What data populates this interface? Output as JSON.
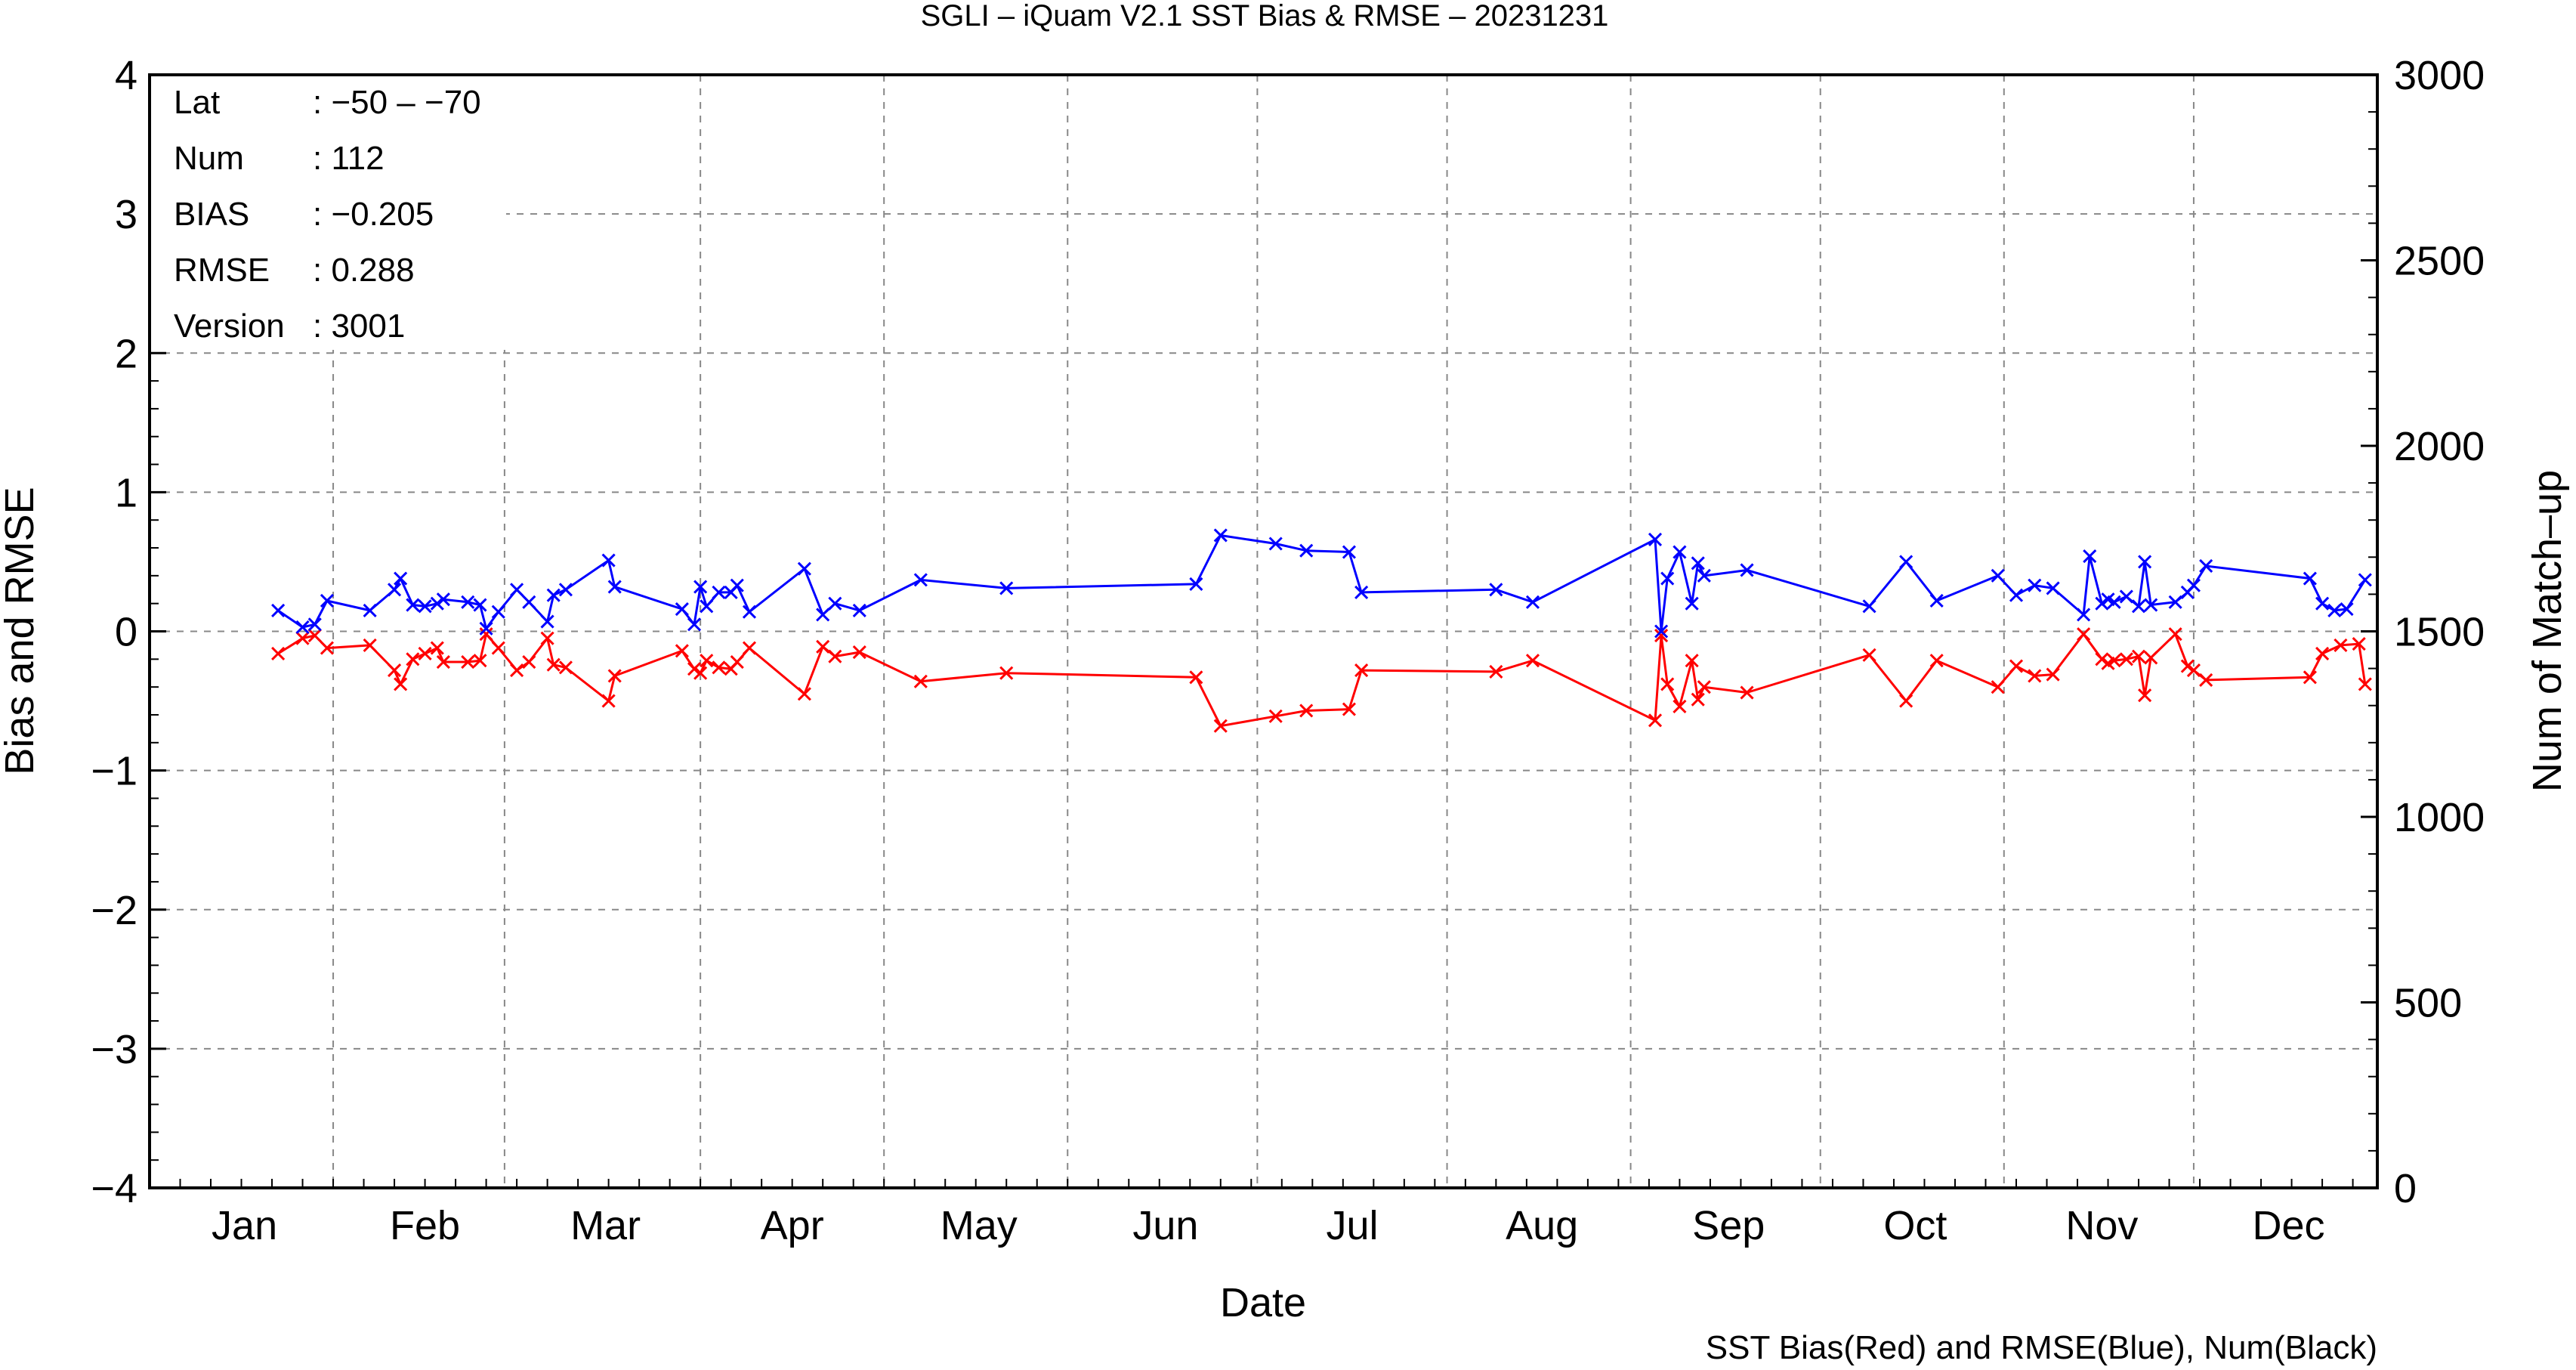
{
  "chart_data": {
    "type": "line",
    "title": "SGLI – iQuam V2.1 SST Bias & RMSE  – 20231231",
    "xlabel": "Date",
    "ylabel": "Bias and RMSE",
    "y2label": "Num of Match–up",
    "footer": "SST Bias(Red) and RMSE(Blue), Num(Black)",
    "xlim": [
      "2023-01-01",
      "2023-12-31"
    ],
    "ylim": [
      -4,
      4
    ],
    "y2lim": [
      0,
      3000
    ],
    "grid": true,
    "month_labels": [
      "Jan",
      "Feb",
      "Mar",
      "Apr",
      "May",
      "Jun",
      "Jul",
      "Aug",
      "Sep",
      "Oct",
      "Nov",
      "Dec"
    ],
    "y_ticks": [
      "−4",
      "−3",
      "−2",
      "−1",
      "0",
      "1",
      "2",
      "3",
      "4"
    ],
    "y2_ticks": [
      "0",
      "500",
      "1000",
      "1500",
      "2000",
      "2500",
      "3000"
    ],
    "grid_dates": [
      "2023-01-31",
      "2023-02-28",
      "2023-04-01",
      "2023-05-01",
      "2023-05-31",
      "2023-07-01",
      "2023-08-01",
      "2023-08-31",
      "2023-10-01",
      "2023-10-31",
      "2023-12-01"
    ],
    "stats": [
      {
        "label": "Lat",
        "value": ": −50 – −70"
      },
      {
        "label": "Num",
        "value": ": 112"
      },
      {
        "label": "BIAS",
        "value": ": −0.205"
      },
      {
        "label": "RMSE",
        "value": ": 0.288"
      },
      {
        "label": "Version",
        "value": ": 3001"
      }
    ],
    "colors": {
      "bias": "#ff0000",
      "rmse": "#0000ff",
      "num": "#000000",
      "grid": "#888888"
    },
    "series": [
      {
        "name": "Bias",
        "color": "#ff0000",
        "points": [
          [
            "2023-01-22",
            -0.16
          ],
          [
            "2023-01-26",
            -0.05
          ],
          [
            "2023-01-28",
            -0.03
          ],
          [
            "2023-01-30",
            -0.12
          ],
          [
            "2023-02-06",
            -0.1
          ],
          [
            "2023-02-10",
            -0.28
          ],
          [
            "2023-02-11",
            -0.38
          ],
          [
            "2023-02-13",
            -0.2
          ],
          [
            "2023-02-15",
            -0.16
          ],
          [
            "2023-02-17",
            -0.12
          ],
          [
            "2023-02-18",
            -0.22
          ],
          [
            "2023-02-22",
            -0.22
          ],
          [
            "2023-02-24",
            -0.21
          ],
          [
            "2023-02-25",
            -0.02
          ],
          [
            "2023-02-27",
            -0.12
          ],
          [
            "2023-03-02",
            -0.28
          ],
          [
            "2023-03-04",
            -0.22
          ],
          [
            "2023-03-07",
            -0.05
          ],
          [
            "2023-03-08",
            -0.24
          ],
          [
            "2023-03-10",
            -0.26
          ],
          [
            "2023-03-17",
            -0.5
          ],
          [
            "2023-03-18",
            -0.32
          ],
          [
            "2023-03-29",
            -0.14
          ],
          [
            "2023-03-31",
            -0.27
          ],
          [
            "2023-04-01",
            -0.3
          ],
          [
            "2023-04-02",
            -0.21
          ],
          [
            "2023-04-04",
            -0.26
          ],
          [
            "2023-04-06",
            -0.27
          ],
          [
            "2023-04-07",
            -0.22
          ],
          [
            "2023-04-09",
            -0.12
          ],
          [
            "2023-04-18",
            -0.45
          ],
          [
            "2023-04-21",
            -0.11
          ],
          [
            "2023-04-23",
            -0.18
          ],
          [
            "2023-04-27",
            -0.15
          ],
          [
            "2023-05-07",
            -0.36
          ],
          [
            "2023-05-21",
            -0.3
          ],
          [
            "2023-06-21",
            -0.33
          ],
          [
            "2023-06-25",
            -0.68
          ],
          [
            "2023-07-04",
            -0.61
          ],
          [
            "2023-07-09",
            -0.57
          ],
          [
            "2023-07-16",
            -0.56
          ],
          [
            "2023-07-18",
            -0.28
          ],
          [
            "2023-08-09",
            -0.29
          ],
          [
            "2023-08-15",
            -0.21
          ],
          [
            "2023-09-04",
            -0.64
          ],
          [
            "2023-09-05",
            -0.03
          ],
          [
            "2023-09-06",
            -0.38
          ],
          [
            "2023-09-08",
            -0.54
          ],
          [
            "2023-09-10",
            -0.21
          ],
          [
            "2023-09-11",
            -0.49
          ],
          [
            "2023-09-12",
            -0.4
          ],
          [
            "2023-09-19",
            -0.44
          ],
          [
            "2023-10-09",
            -0.17
          ],
          [
            "2023-10-15",
            -0.5
          ],
          [
            "2023-10-20",
            -0.21
          ],
          [
            "2023-10-30",
            -0.4
          ],
          [
            "2023-11-02",
            -0.25
          ],
          [
            "2023-11-05",
            -0.32
          ],
          [
            "2023-11-08",
            -0.31
          ],
          [
            "2023-11-13",
            -0.02
          ],
          [
            "2023-11-16",
            -0.2
          ],
          [
            "2023-11-17",
            -0.23
          ],
          [
            "2023-11-18",
            -0.21
          ],
          [
            "2023-11-20",
            -0.2
          ],
          [
            "2023-11-22",
            -0.18
          ],
          [
            "2023-11-23",
            -0.46
          ],
          [
            "2023-11-24",
            -0.19
          ],
          [
            "2023-11-28",
            -0.02
          ],
          [
            "2023-11-30",
            -0.25
          ],
          [
            "2023-12-01",
            -0.28
          ],
          [
            "2023-12-03",
            -0.35
          ],
          [
            "2023-12-20",
            -0.33
          ],
          [
            "2023-12-22",
            -0.16
          ],
          [
            "2023-12-25",
            -0.1
          ],
          [
            "2023-12-28",
            -0.09
          ],
          [
            "2023-12-29",
            -0.38
          ]
        ]
      },
      {
        "name": "RMSE",
        "color": "#0000ff",
        "points": [
          [
            "2023-01-22",
            0.15
          ],
          [
            "2023-01-26",
            0.03
          ],
          [
            "2023-01-28",
            0.05
          ],
          [
            "2023-01-30",
            0.22
          ],
          [
            "2023-02-06",
            0.15
          ],
          [
            "2023-02-10",
            0.3
          ],
          [
            "2023-02-11",
            0.38
          ],
          [
            "2023-02-13",
            0.19
          ],
          [
            "2023-02-15",
            0.18
          ],
          [
            "2023-02-17",
            0.2
          ],
          [
            "2023-02-18",
            0.23
          ],
          [
            "2023-02-22",
            0.21
          ],
          [
            "2023-02-24",
            0.19
          ],
          [
            "2023-02-25",
            0.02
          ],
          [
            "2023-02-27",
            0.14
          ],
          [
            "2023-03-02",
            0.3
          ],
          [
            "2023-03-04",
            0.21
          ],
          [
            "2023-03-07",
            0.07
          ],
          [
            "2023-03-08",
            0.26
          ],
          [
            "2023-03-10",
            0.3
          ],
          [
            "2023-03-17",
            0.51
          ],
          [
            "2023-03-18",
            0.32
          ],
          [
            "2023-03-29",
            0.16
          ],
          [
            "2023-03-31",
            0.05
          ],
          [
            "2023-04-01",
            0.32
          ],
          [
            "2023-04-02",
            0.18
          ],
          [
            "2023-04-04",
            0.28
          ],
          [
            "2023-04-06",
            0.28
          ],
          [
            "2023-04-07",
            0.33
          ],
          [
            "2023-04-09",
            0.14
          ],
          [
            "2023-04-18",
            0.45
          ],
          [
            "2023-04-21",
            0.12
          ],
          [
            "2023-04-23",
            0.2
          ],
          [
            "2023-04-27",
            0.15
          ],
          [
            "2023-05-07",
            0.37
          ],
          [
            "2023-05-21",
            0.31
          ],
          [
            "2023-06-21",
            0.34
          ],
          [
            "2023-06-25",
            0.69
          ],
          [
            "2023-07-04",
            0.63
          ],
          [
            "2023-07-09",
            0.58
          ],
          [
            "2023-07-16",
            0.57
          ],
          [
            "2023-07-18",
            0.28
          ],
          [
            "2023-08-09",
            0.3
          ],
          [
            "2023-08-15",
            0.21
          ],
          [
            "2023-09-04",
            0.66
          ],
          [
            "2023-09-05",
            0.0
          ],
          [
            "2023-09-06",
            0.38
          ],
          [
            "2023-09-08",
            0.57
          ],
          [
            "2023-09-10",
            0.2
          ],
          [
            "2023-09-11",
            0.49
          ],
          [
            "2023-09-12",
            0.4
          ],
          [
            "2023-09-19",
            0.44
          ],
          [
            "2023-10-09",
            0.18
          ],
          [
            "2023-10-15",
            0.5
          ],
          [
            "2023-10-20",
            0.22
          ],
          [
            "2023-10-30",
            0.4
          ],
          [
            "2023-11-02",
            0.26
          ],
          [
            "2023-11-05",
            0.33
          ],
          [
            "2023-11-08",
            0.31
          ],
          [
            "2023-11-13",
            0.12
          ],
          [
            "2023-11-14",
            0.54
          ],
          [
            "2023-11-16",
            0.2
          ],
          [
            "2023-11-17",
            0.23
          ],
          [
            "2023-11-18",
            0.21
          ],
          [
            "2023-11-20",
            0.25
          ],
          [
            "2023-11-22",
            0.18
          ],
          [
            "2023-11-23",
            0.5
          ],
          [
            "2023-11-24",
            0.19
          ],
          [
            "2023-11-28",
            0.21
          ],
          [
            "2023-11-30",
            0.28
          ],
          [
            "2023-12-01",
            0.33
          ],
          [
            "2023-12-03",
            0.47
          ],
          [
            "2023-12-20",
            0.38
          ],
          [
            "2023-12-22",
            0.2
          ],
          [
            "2023-12-24",
            0.15
          ],
          [
            "2023-12-26",
            0.16
          ],
          [
            "2023-12-29",
            0.37
          ]
        ]
      }
    ]
  }
}
